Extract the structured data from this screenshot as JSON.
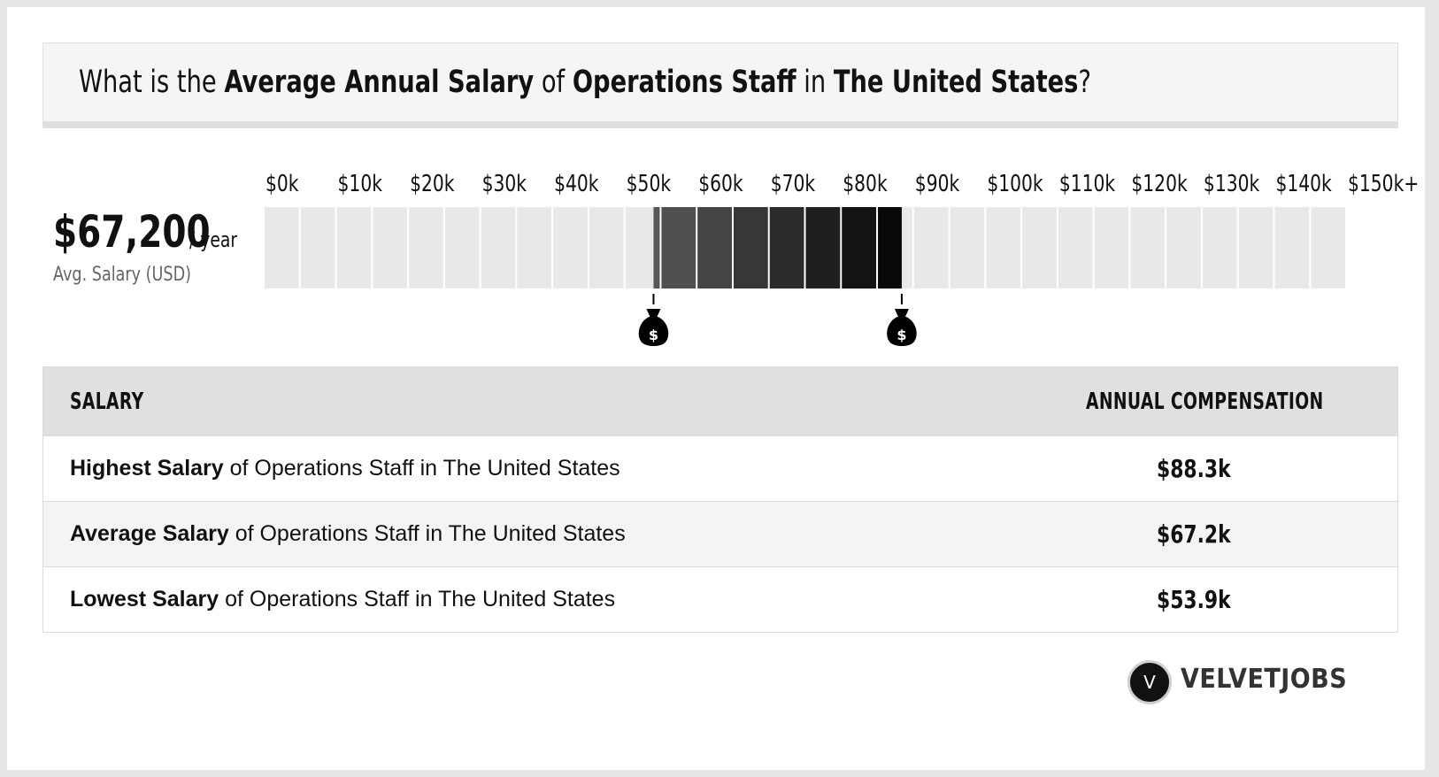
{
  "header": {
    "prefix": "What is the ",
    "metric": "Average Annual Salary",
    "mid1": " of ",
    "role": "Operations Staff",
    "mid2": " in ",
    "location": "The United States",
    "suffix": "?"
  },
  "average": {
    "value": "$67,200",
    "unit": "/ year",
    "label": "Avg. Salary (USD)"
  },
  "chart_data": {
    "type": "bar",
    "axis_labels": [
      "$0k",
      "$10k",
      "$20k",
      "$30k",
      "$40k",
      "$50k",
      "$60k",
      "$70k",
      "$80k",
      "$90k",
      "$100k",
      "$110k",
      "$120k",
      "$130k",
      "$140k",
      "$150k+"
    ],
    "xlim": [
      0,
      150
    ],
    "range_low": 53.9,
    "range_high": 88.3,
    "average": 67.2,
    "markers": [
      53.9,
      88.3
    ],
    "marker_symbol": "$",
    "colors": {
      "empty": "#e8e8e8",
      "range_start": "#585858",
      "range_end": "#050505",
      "marker": "#000000",
      "tick_text": "#111111"
    }
  },
  "table": {
    "header_left": "SALARY",
    "header_right": "ANNUAL COMPENSATION",
    "rows": [
      {
        "bold": "Highest Salary",
        "rest": " of Operations Staff in The United States",
        "value": "$88.3k"
      },
      {
        "bold": "Average Salary",
        "rest": " of Operations Staff in The United States",
        "value": "$67.2k"
      },
      {
        "bold": "Lowest Salary",
        "rest": " of Operations Staff in The United States",
        "value": "$53.9k"
      }
    ]
  },
  "logo": {
    "letter": "V",
    "name": "VELVETJOBS"
  }
}
